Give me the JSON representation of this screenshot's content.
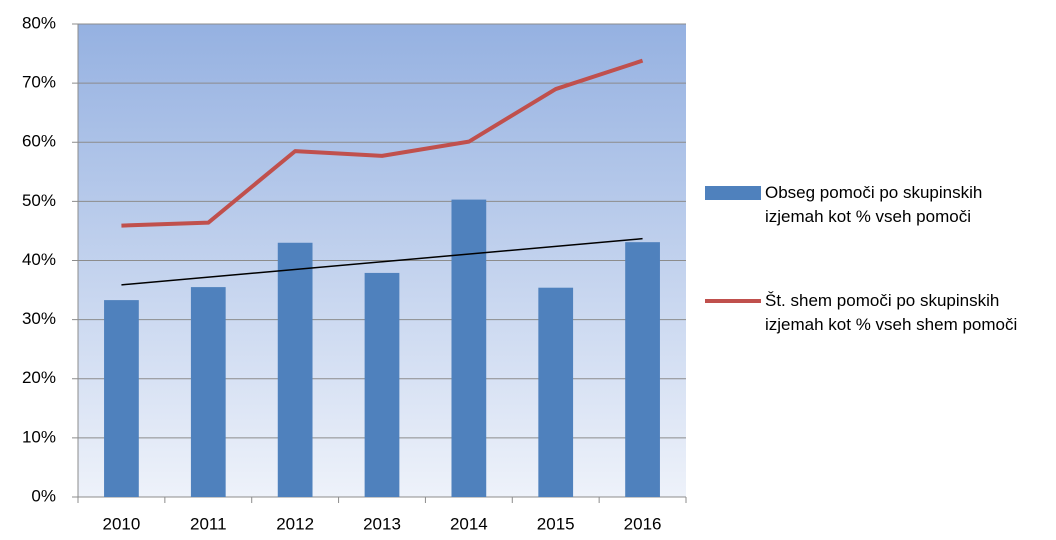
{
  "chart_data": {
    "type": "bar_line",
    "categories": [
      "2010",
      "2011",
      "2012",
      "2013",
      "2014",
      "2015",
      "2016"
    ],
    "series": [
      {
        "name": "Obseg pomoči po skupinskih izjemah kot % vseh pomoči",
        "color": "#4f81bd",
        "type": "bar",
        "values": [
          33.3,
          35.5,
          43.0,
          37.9,
          50.3,
          35.4,
          43.1
        ]
      },
      {
        "name": "Št. shem pomoči po skupinskih izjemah kot % vseh shem pomoči",
        "color": "#c0504d",
        "type": "line",
        "values": [
          45.9,
          46.4,
          58.5,
          57.7,
          60.1,
          69.0,
          73.8
        ]
      }
    ],
    "trendline": true,
    "ylim": [
      0,
      80
    ],
    "yticks": [
      {
        "value": 0,
        "label": "0%"
      },
      {
        "value": 10,
        "label": "10%"
      },
      {
        "value": 20,
        "label": "20%"
      },
      {
        "value": 30,
        "label": "30%"
      },
      {
        "value": 40,
        "label": "40%"
      },
      {
        "value": 50,
        "label": "50%"
      },
      {
        "value": 60,
        "label": "60%"
      },
      {
        "value": 70,
        "label": "70%"
      },
      {
        "value": 80,
        "label": "80%"
      }
    ],
    "grid": true,
    "legend": "right"
  }
}
